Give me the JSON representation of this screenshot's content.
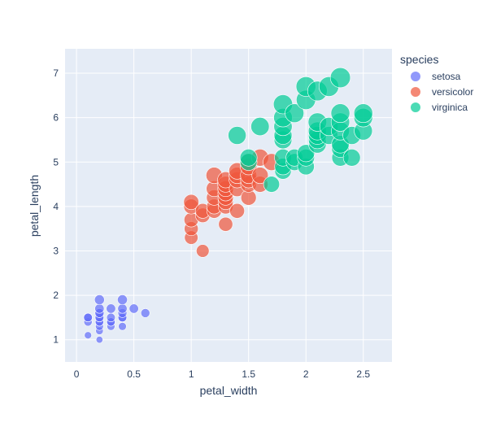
{
  "colors": {
    "plot_bg": "#E5ECF6",
    "grid": "#ffffff",
    "text": "#2a3f5f"
  },
  "chart_data": {
    "type": "scatter",
    "title": "",
    "xlabel": "petal_width",
    "ylabel": "petal_length",
    "xlim": [
      -0.1,
      2.75
    ],
    "ylim": [
      0.5,
      7.55
    ],
    "xticks": [
      0,
      0.5,
      1,
      1.5,
      2,
      2.5
    ],
    "xtick_labels": [
      "0",
      "0.5",
      "1",
      "1.5",
      "2",
      "2.5"
    ],
    "yticks": [
      1,
      2,
      3,
      4,
      5,
      6,
      7
    ],
    "ytick_labels": [
      "1",
      "2",
      "3",
      "4",
      "5",
      "6",
      "7"
    ],
    "grid": true,
    "legend": {
      "title": "species",
      "placement": "right"
    },
    "series": [
      {
        "name": "setosa",
        "color": "#636EFA",
        "points": [
          [
            0.1,
            1.1
          ],
          [
            0.1,
            1.4
          ],
          [
            0.1,
            1.5
          ],
          [
            0.1,
            1.5
          ],
          [
            0.2,
            1.0
          ],
          [
            0.2,
            1.2
          ],
          [
            0.2,
            1.3
          ],
          [
            0.2,
            1.4
          ],
          [
            0.2,
            1.4
          ],
          [
            0.2,
            1.5
          ],
          [
            0.2,
            1.5
          ],
          [
            0.2,
            1.6
          ],
          [
            0.2,
            1.6
          ],
          [
            0.2,
            1.7
          ],
          [
            0.2,
            1.9
          ],
          [
            0.3,
            1.3
          ],
          [
            0.3,
            1.4
          ],
          [
            0.3,
            1.4
          ],
          [
            0.3,
            1.5
          ],
          [
            0.3,
            1.7
          ],
          [
            0.4,
            1.3
          ],
          [
            0.4,
            1.5
          ],
          [
            0.4,
            1.5
          ],
          [
            0.4,
            1.6
          ],
          [
            0.4,
            1.7
          ],
          [
            0.4,
            1.9
          ],
          [
            0.5,
            1.7
          ],
          [
            0.6,
            1.6
          ]
        ]
      },
      {
        "name": "versicolor",
        "color": "#EF553B",
        "points": [
          [
            1.0,
            3.3
          ],
          [
            1.0,
            3.5
          ],
          [
            1.0,
            3.7
          ],
          [
            1.0,
            4.0
          ],
          [
            1.0,
            4.1
          ],
          [
            1.1,
            3.0
          ],
          [
            1.1,
            3.8
          ],
          [
            1.1,
            3.9
          ],
          [
            1.2,
            3.9
          ],
          [
            1.2,
            4.0
          ],
          [
            1.2,
            4.2
          ],
          [
            1.2,
            4.4
          ],
          [
            1.2,
            4.7
          ],
          [
            1.3,
            3.6
          ],
          [
            1.3,
            4.0
          ],
          [
            1.3,
            4.1
          ],
          [
            1.3,
            4.2
          ],
          [
            1.3,
            4.3
          ],
          [
            1.3,
            4.4
          ],
          [
            1.3,
            4.5
          ],
          [
            1.3,
            4.6
          ],
          [
            1.4,
            3.9
          ],
          [
            1.4,
            4.4
          ],
          [
            1.4,
            4.6
          ],
          [
            1.4,
            4.7
          ],
          [
            1.4,
            4.8
          ],
          [
            1.5,
            4.2
          ],
          [
            1.5,
            4.5
          ],
          [
            1.5,
            4.6
          ],
          [
            1.5,
            4.7
          ],
          [
            1.5,
            4.9
          ],
          [
            1.5,
            5.0
          ],
          [
            1.6,
            4.5
          ],
          [
            1.6,
            4.7
          ],
          [
            1.6,
            5.1
          ],
          [
            1.7,
            5.0
          ]
        ]
      },
      {
        "name": "virginica",
        "color": "#00CC96",
        "points": [
          [
            1.4,
            5.6
          ],
          [
            1.5,
            5.0
          ],
          [
            1.5,
            5.1
          ],
          [
            1.6,
            5.8
          ],
          [
            1.7,
            4.5
          ],
          [
            1.8,
            4.8
          ],
          [
            1.8,
            4.9
          ],
          [
            1.8,
            5.1
          ],
          [
            1.8,
            5.5
          ],
          [
            1.8,
            5.6
          ],
          [
            1.8,
            5.8
          ],
          [
            1.8,
            6.0
          ],
          [
            1.8,
            6.3
          ],
          [
            1.9,
            5.0
          ],
          [
            1.9,
            5.1
          ],
          [
            1.9,
            6.1
          ],
          [
            2.0,
            4.9
          ],
          [
            2.0,
            5.1
          ],
          [
            2.0,
            5.2
          ],
          [
            2.0,
            6.4
          ],
          [
            2.0,
            6.7
          ],
          [
            2.1,
            5.4
          ],
          [
            2.1,
            5.5
          ],
          [
            2.1,
            5.6
          ],
          [
            2.1,
            5.7
          ],
          [
            2.1,
            5.9
          ],
          [
            2.1,
            6.6
          ],
          [
            2.2,
            5.6
          ],
          [
            2.2,
            5.8
          ],
          [
            2.2,
            6.7
          ],
          [
            2.3,
            5.1
          ],
          [
            2.3,
            5.3
          ],
          [
            2.3,
            5.4
          ],
          [
            2.3,
            5.7
          ],
          [
            2.3,
            5.9
          ],
          [
            2.3,
            6.1
          ],
          [
            2.3,
            6.9
          ],
          [
            2.4,
            5.1
          ],
          [
            2.4,
            5.6
          ],
          [
            2.5,
            5.7
          ],
          [
            2.5,
            6.0
          ],
          [
            2.5,
            6.1
          ]
        ]
      }
    ]
  }
}
